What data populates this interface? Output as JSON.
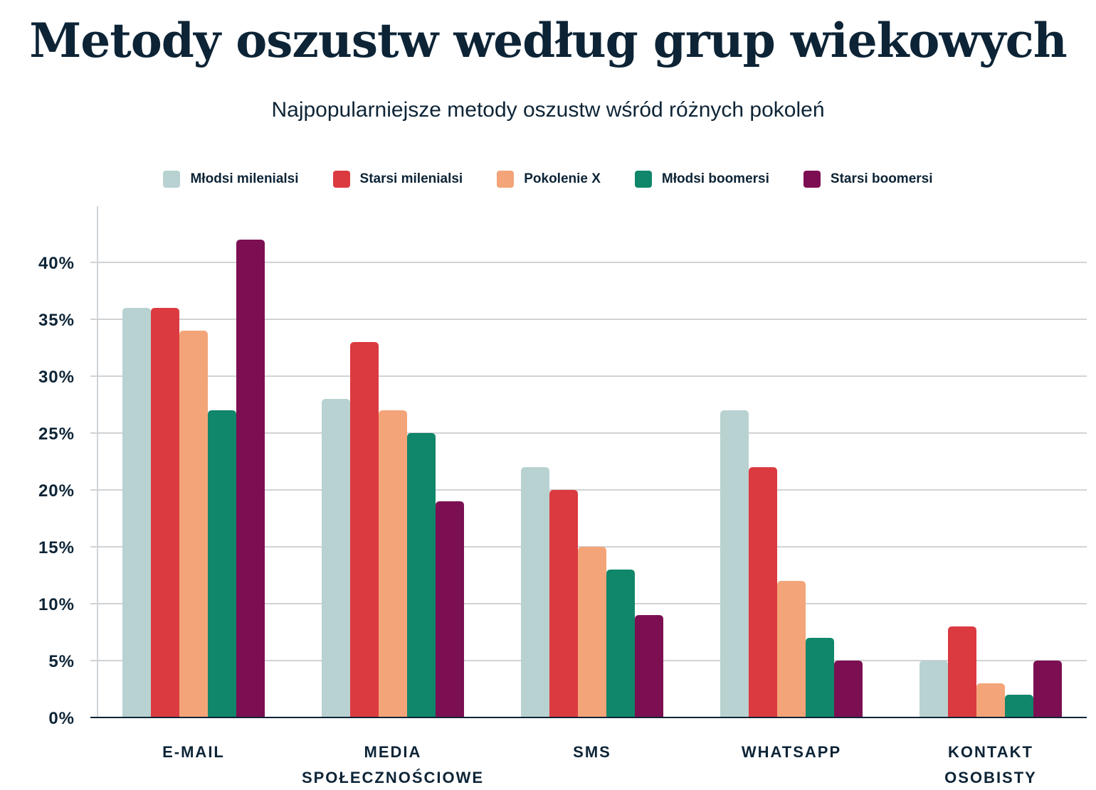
{
  "chart_data": {
    "type": "bar",
    "title": "Metody oszustw według grup wiekowych",
    "subtitle": "Najpopularniejsze metody oszustw wśród różnych pokoleń",
    "categories": [
      [
        "E-MAIL"
      ],
      [
        "MEDIA",
        "SPOŁECZNOŚCIOWE"
      ],
      [
        "SMS"
      ],
      [
        "WHATSAPP"
      ],
      [
        "KONTAKT",
        "OSOBISTY"
      ]
    ],
    "series": [
      {
        "name": "Młodsi milenialsi",
        "color": "#b8d1d1",
        "values": [
          36,
          28,
          22,
          27,
          5
        ]
      },
      {
        "name": "Starsi milenialsi",
        "color": "#db3a40",
        "values": [
          36,
          33,
          20,
          22,
          8
        ]
      },
      {
        "name": "Pokolenie X",
        "color": "#f3a478",
        "values": [
          34,
          27,
          15,
          12,
          3
        ]
      },
      {
        "name": "Młodsi boomersi",
        "color": "#10866a",
        "values": [
          27,
          25,
          13,
          7,
          2
        ]
      },
      {
        "name": "Starsi boomersi",
        "color": "#7c0f52",
        "values": [
          42,
          19,
          9,
          5,
          5
        ]
      }
    ],
    "yticks": [
      "0%",
      "5%",
      "10%",
      "15%",
      "20%",
      "25%",
      "30%",
      "35%",
      "40%"
    ],
    "ytick_values": [
      0,
      5,
      10,
      15,
      20,
      25,
      30,
      35,
      40
    ],
    "ylim": [
      0,
      45
    ],
    "grid": true,
    "legend_position": "top"
  }
}
